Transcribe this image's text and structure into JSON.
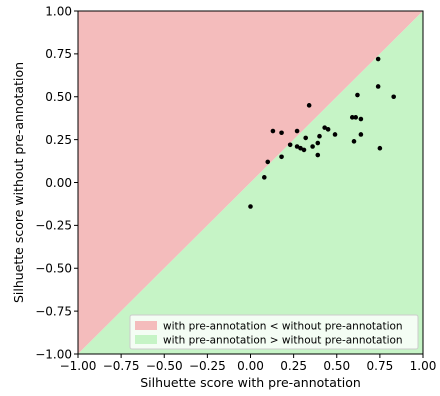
{
  "chart_data": {
    "type": "scatter",
    "xlabel": "Silhuette score with pre-annotation",
    "ylabel": "Silhuette score without pre-annotation",
    "xlim": [
      -1.0,
      1.0
    ],
    "ylim": [
      -1.0,
      1.0
    ],
    "xticks": [
      "−1.00",
      "−0.75",
      "−0.50",
      "−0.25",
      "0.00",
      "0.25",
      "0.50",
      "0.75",
      "1.00"
    ],
    "yticks": [
      "−1.00",
      "−0.75",
      "−0.50",
      "−0.25",
      "0.00",
      "0.25",
      "0.50",
      "0.75",
      "1.00"
    ],
    "grid": false,
    "legend_position": "lower right",
    "regions": [
      {
        "label": "with pre-annotation < without pre-annotation",
        "color": "#f4bcbc",
        "side": "above diagonal"
      },
      {
        "label": "with pre-annotation > without pre-annotation",
        "color": "#c6f4c6",
        "side": "below diagonal"
      }
    ],
    "point_color": "#000000",
    "points": [
      {
        "x": 0.0,
        "y": -0.14
      },
      {
        "x": 0.08,
        "y": 0.03
      },
      {
        "x": 0.1,
        "y": 0.12
      },
      {
        "x": 0.13,
        "y": 0.3
      },
      {
        "x": 0.18,
        "y": 0.29
      },
      {
        "x": 0.18,
        "y": 0.15
      },
      {
        "x": 0.23,
        "y": 0.22
      },
      {
        "x": 0.27,
        "y": 0.3
      },
      {
        "x": 0.27,
        "y": 0.21
      },
      {
        "x": 0.29,
        "y": 0.2
      },
      {
        "x": 0.31,
        "y": 0.19
      },
      {
        "x": 0.32,
        "y": 0.26
      },
      {
        "x": 0.34,
        "y": 0.45
      },
      {
        "x": 0.36,
        "y": 0.21
      },
      {
        "x": 0.39,
        "y": 0.16
      },
      {
        "x": 0.39,
        "y": 0.23
      },
      {
        "x": 0.4,
        "y": 0.27
      },
      {
        "x": 0.43,
        "y": 0.32
      },
      {
        "x": 0.45,
        "y": 0.31
      },
      {
        "x": 0.49,
        "y": 0.28
      },
      {
        "x": 0.59,
        "y": 0.38
      },
      {
        "x": 0.6,
        "y": 0.24
      },
      {
        "x": 0.61,
        "y": 0.38
      },
      {
        "x": 0.62,
        "y": 0.51
      },
      {
        "x": 0.64,
        "y": 0.37
      },
      {
        "x": 0.64,
        "y": 0.28
      },
      {
        "x": 0.74,
        "y": 0.72
      },
      {
        "x": 0.74,
        "y": 0.56
      },
      {
        "x": 0.75,
        "y": 0.2
      },
      {
        "x": 0.83,
        "y": 0.5
      }
    ]
  }
}
